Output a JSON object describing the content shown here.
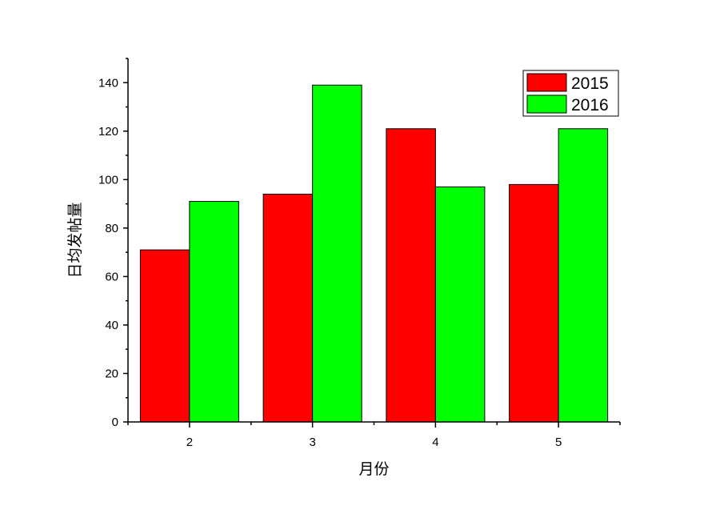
{
  "chart_data": {
    "type": "bar",
    "title": "",
    "xlabel": "月份",
    "ylabel": "日均发帖量",
    "categories": [
      "2",
      "3",
      "4",
      "5"
    ],
    "series": [
      {
        "name": "2015",
        "values": [
          71,
          94,
          121,
          98
        ],
        "color": "#ff0000"
      },
      {
        "name": "2016",
        "values": [
          91,
          139,
          97,
          121
        ],
        "color": "#00ff00"
      }
    ],
    "ylim": [
      0,
      150
    ],
    "y_ticks": [
      0,
      20,
      40,
      60,
      80,
      100,
      120,
      140
    ],
    "grid": false,
    "legend_position": "top-right"
  }
}
